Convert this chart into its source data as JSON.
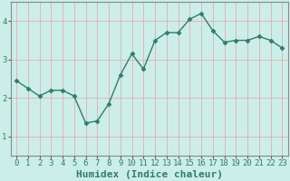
{
  "xlabel": "Humidex (Indice chaleur)",
  "x_values": [
    0,
    1,
    2,
    3,
    4,
    5,
    6,
    7,
    8,
    9,
    10,
    11,
    12,
    13,
    14,
    15,
    16,
    17,
    18,
    19,
    20,
    21,
    22,
    23
  ],
  "y_values": [
    2.45,
    2.25,
    2.05,
    2.2,
    2.2,
    2.05,
    1.35,
    1.4,
    1.85,
    2.6,
    3.15,
    2.75,
    3.5,
    3.7,
    3.7,
    4.05,
    4.2,
    3.75,
    3.45,
    3.5,
    3.5,
    3.6,
    3.5,
    3.3
  ],
  "line_color": "#2d7d6e",
  "marker": "D",
  "marker_size": 2.5,
  "linewidth": 1.0,
  "bg_color": "#cceee8",
  "grid_color": "#e8a0a0",
  "ylim": [
    0.5,
    4.5
  ],
  "xlim": [
    -0.5,
    23.5
  ],
  "yticks": [
    1,
    2,
    3,
    4
  ],
  "xticks": [
    0,
    1,
    2,
    3,
    4,
    5,
    6,
    7,
    8,
    9,
    10,
    11,
    12,
    13,
    14,
    15,
    16,
    17,
    18,
    19,
    20,
    21,
    22,
    23
  ],
  "tick_fontsize": 6.5,
  "label_fontsize": 8,
  "tick_color": "#2d7d6e",
  "xlabel_color": "#2d7d6e"
}
